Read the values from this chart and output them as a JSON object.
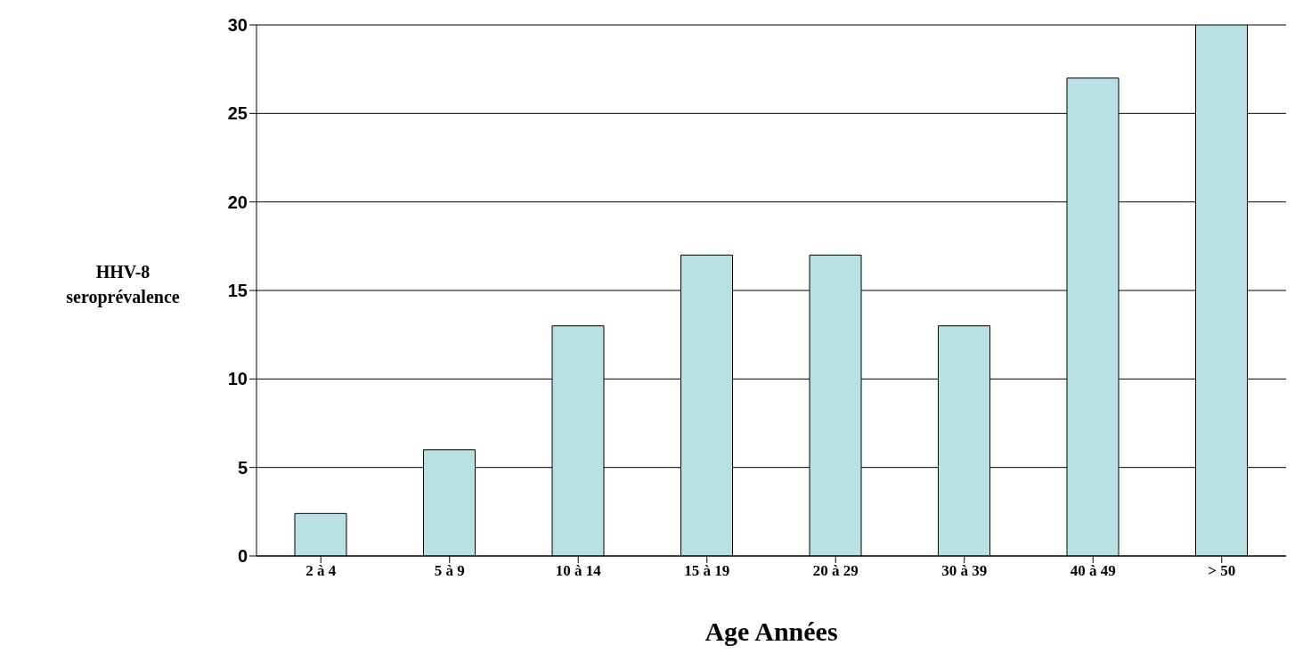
{
  "chart_data": {
    "type": "bar",
    "xlabel": "Age Années",
    "ylabel": "HHV-8 seroprévalence",
    "categories": [
      "2 à 4",
      "5 à 9",
      "10 à 14",
      "15 à 19",
      "20 à 29",
      "30 à 39",
      "40 à 49",
      "> 50"
    ],
    "values": [
      2.4,
      6,
      13,
      17,
      17,
      13,
      27,
      30
    ],
    "color": "#b9e0e3",
    "ylim": [
      0,
      30
    ],
    "yticks": [
      0,
      5,
      10,
      15,
      20,
      25,
      30
    ],
    "grid": "y"
  }
}
